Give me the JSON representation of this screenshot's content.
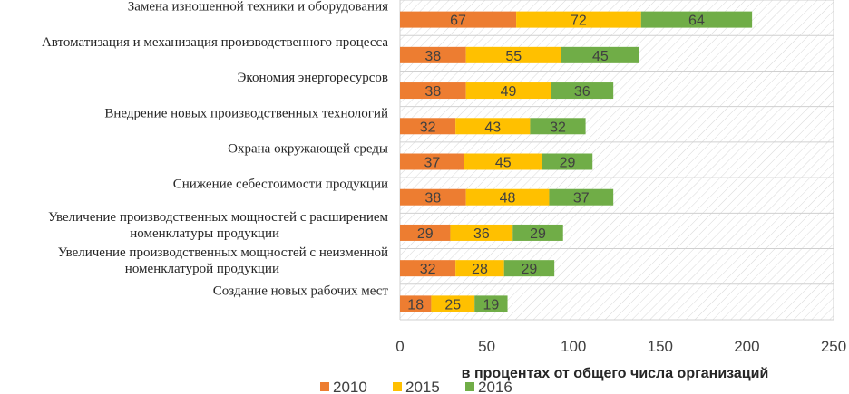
{
  "chart_data": {
    "type": "bar",
    "orientation": "horizontal",
    "stacked": true,
    "categories": [
      "Замена изношенной техники и оборудования",
      "Автоматизация и механизация производственного процесса",
      "Экономия энергоресурсов",
      "Внедрение новых производственных технологий",
      "Охрана окружающей среды",
      "Снижение себестоимости продукции",
      "Увеличение производственных мощностей с расширением номенклатуры продукции",
      "Увеличение производственных мощностей с неизменной номенклатурой продукции",
      "Создание новых рабочих мест"
    ],
    "category_lines": [
      [
        "Замена изношенной техники и оборудования"
      ],
      [
        "Автоматизация и механизация производственного процесса"
      ],
      [
        "Экономия энергоресурсов"
      ],
      [
        "Внедрение новых производственных технологий"
      ],
      [
        "Охрана окружающей среды"
      ],
      [
        "Снижение себестоимости продукции"
      ],
      [
        "Увеличение производственных мощностей с расширением",
        "номенклатуры продукции"
      ],
      [
        "Увеличение производственных мощностей с неизменной",
        "номенклатурой продукции"
      ],
      [
        "Создание новых рабочих мест"
      ]
    ],
    "series": [
      {
        "name": "2010",
        "color": "#ED7D31",
        "values": [
          67,
          38,
          38,
          32,
          37,
          38,
          29,
          32,
          18
        ]
      },
      {
        "name": "2015",
        "color": "#FFC000",
        "values": [
          72,
          55,
          49,
          43,
          45,
          48,
          36,
          28,
          25
        ]
      },
      {
        "name": "2016",
        "color": "#70AD47",
        "values": [
          64,
          45,
          36,
          32,
          29,
          37,
          29,
          29,
          19
        ]
      }
    ],
    "xlim": [
      0,
      250
    ],
    "xticks": [
      0,
      50,
      100,
      150,
      200,
      250
    ],
    "xlabel": "в процентах от общего числа организаций",
    "title": "",
    "legend_position": "bottom",
    "plot_background": "hatched"
  }
}
